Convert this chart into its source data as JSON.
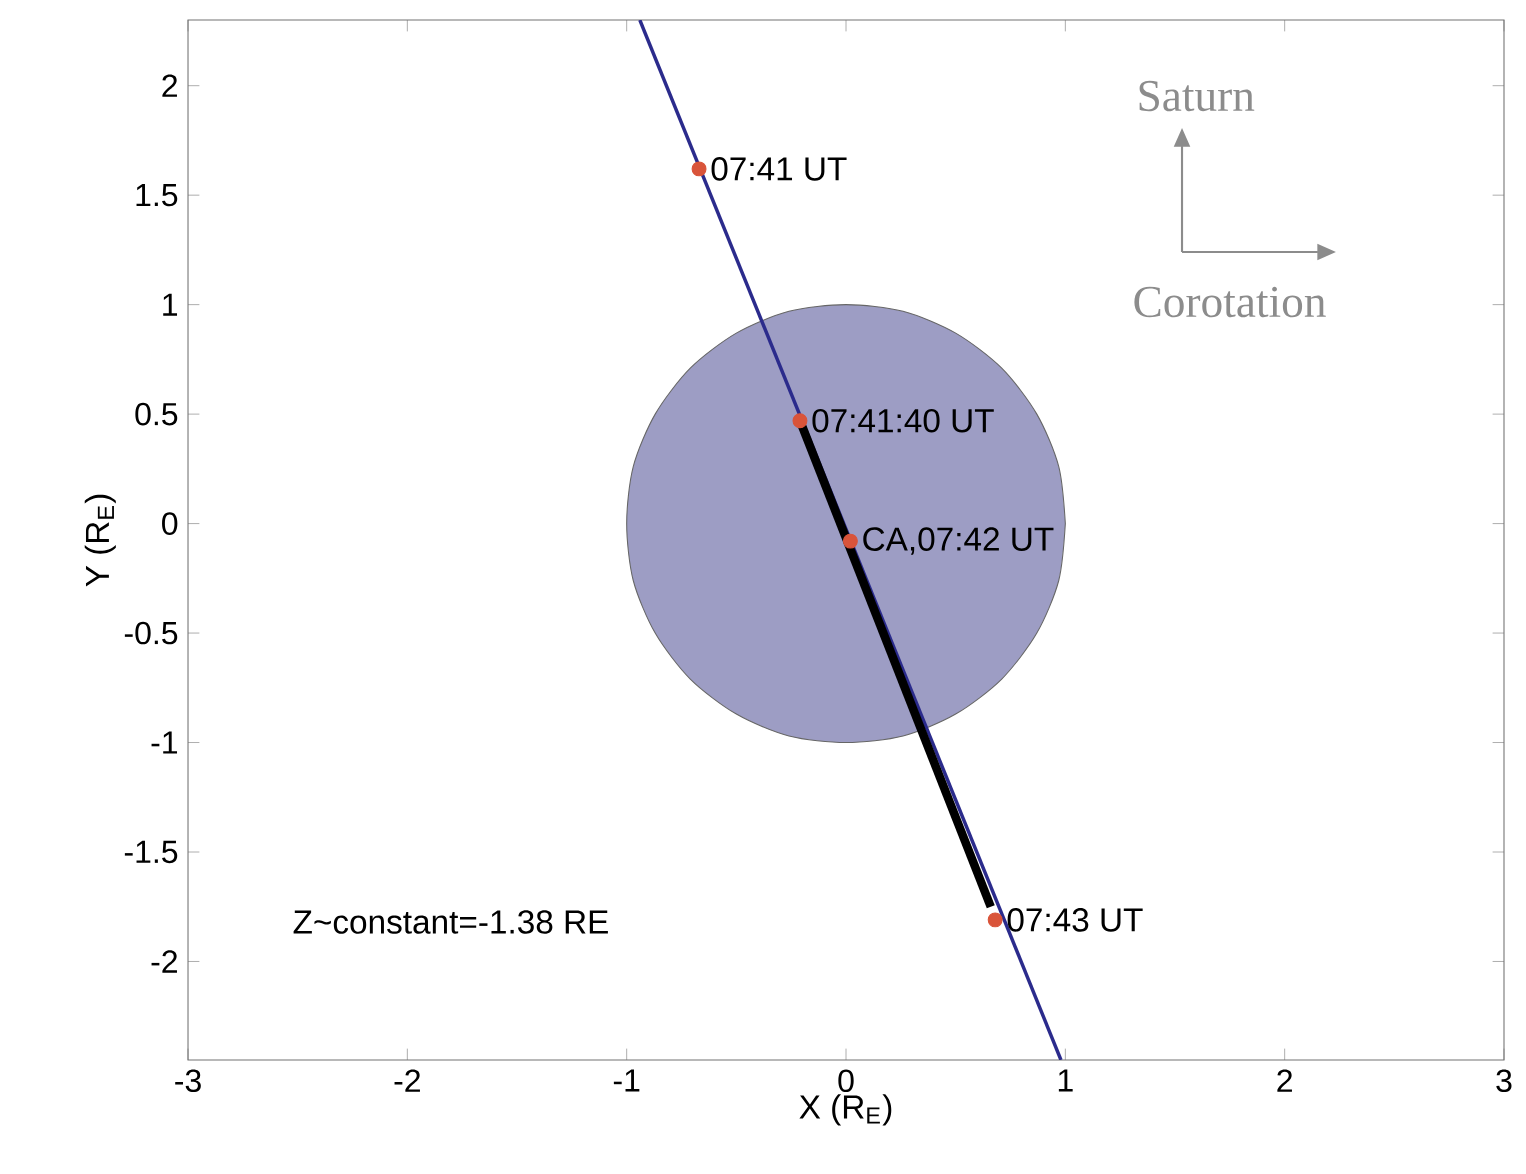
{
  "chart_data": {
    "type": "line",
    "xlabel": "X (R$_{E}$)",
    "ylabel": "Y (R$_{E}$)",
    "xlim": [
      -3,
      3
    ],
    "ylim": [
      -2.45,
      2.3
    ],
    "xticks": [
      -3,
      -2,
      -1,
      0,
      1,
      2,
      3
    ],
    "yticks": [
      -2,
      -1.5,
      -1,
      -0.5,
      0,
      0.5,
      1,
      1.5,
      2
    ],
    "grid": false,
    "series": [
      {
        "type": "area",
        "color": "#9d9dc4",
        "x": [
          1,
          0.97,
          0.87,
          0.71,
          0.5,
          0.26,
          0,
          -0.26,
          -0.5,
          -0.71,
          -0.87,
          -0.97,
          -1,
          -0.97,
          -0.87,
          -0.71,
          -0.5,
          -0.26,
          0,
          0.26,
          0.5,
          0.71,
          0.87,
          0.97,
          1
        ],
        "values": [
          0,
          0.26,
          0.5,
          0.71,
          0.87,
          0.97,
          1,
          0.97,
          0.87,
          0.71,
          0.5,
          0.26,
          0,
          -0.26,
          -0.5,
          -0.71,
          -0.87,
          -0.97,
          -1,
          -0.97,
          -0.87,
          -0.71,
          -0.5,
          -0.26,
          0
        ]
      },
      {
        "color": "#2b2b8c",
        "x": [
          -0.94,
          0.98
        ],
        "values": [
          2.3,
          -2.45
        ]
      },
      {
        "type": "line",
        "color": "#000000",
        "x": [
          -0.21,
          0.66
        ],
        "values": [
          0.47,
          -1.75
        ]
      },
      {
        "type": "scatter",
        "color": "#d9543a",
        "marker": "circle",
        "x": [
          -0.67,
          -0.21,
          0.02,
          0.68
        ],
        "values": [
          1.62,
          0.47,
          -0.08,
          -1.81
        ]
      }
    ],
    "annotations": [
      {
        "text": "07:41 UT",
        "x": -0.67,
        "y": 1.62
      },
      {
        "text": "07:41:40 UT",
        "x": -0.21,
        "y": 0.47
      },
      {
        "text": "CA,07:42 UT",
        "x": 0.02,
        "y": -0.08
      },
      {
        "text": "07:43 UT",
        "x": 0.68,
        "y": -1.81
      },
      "Z~constant=-1.38 RE",
      "Saturn",
      "Corotation"
    ]
  }
}
